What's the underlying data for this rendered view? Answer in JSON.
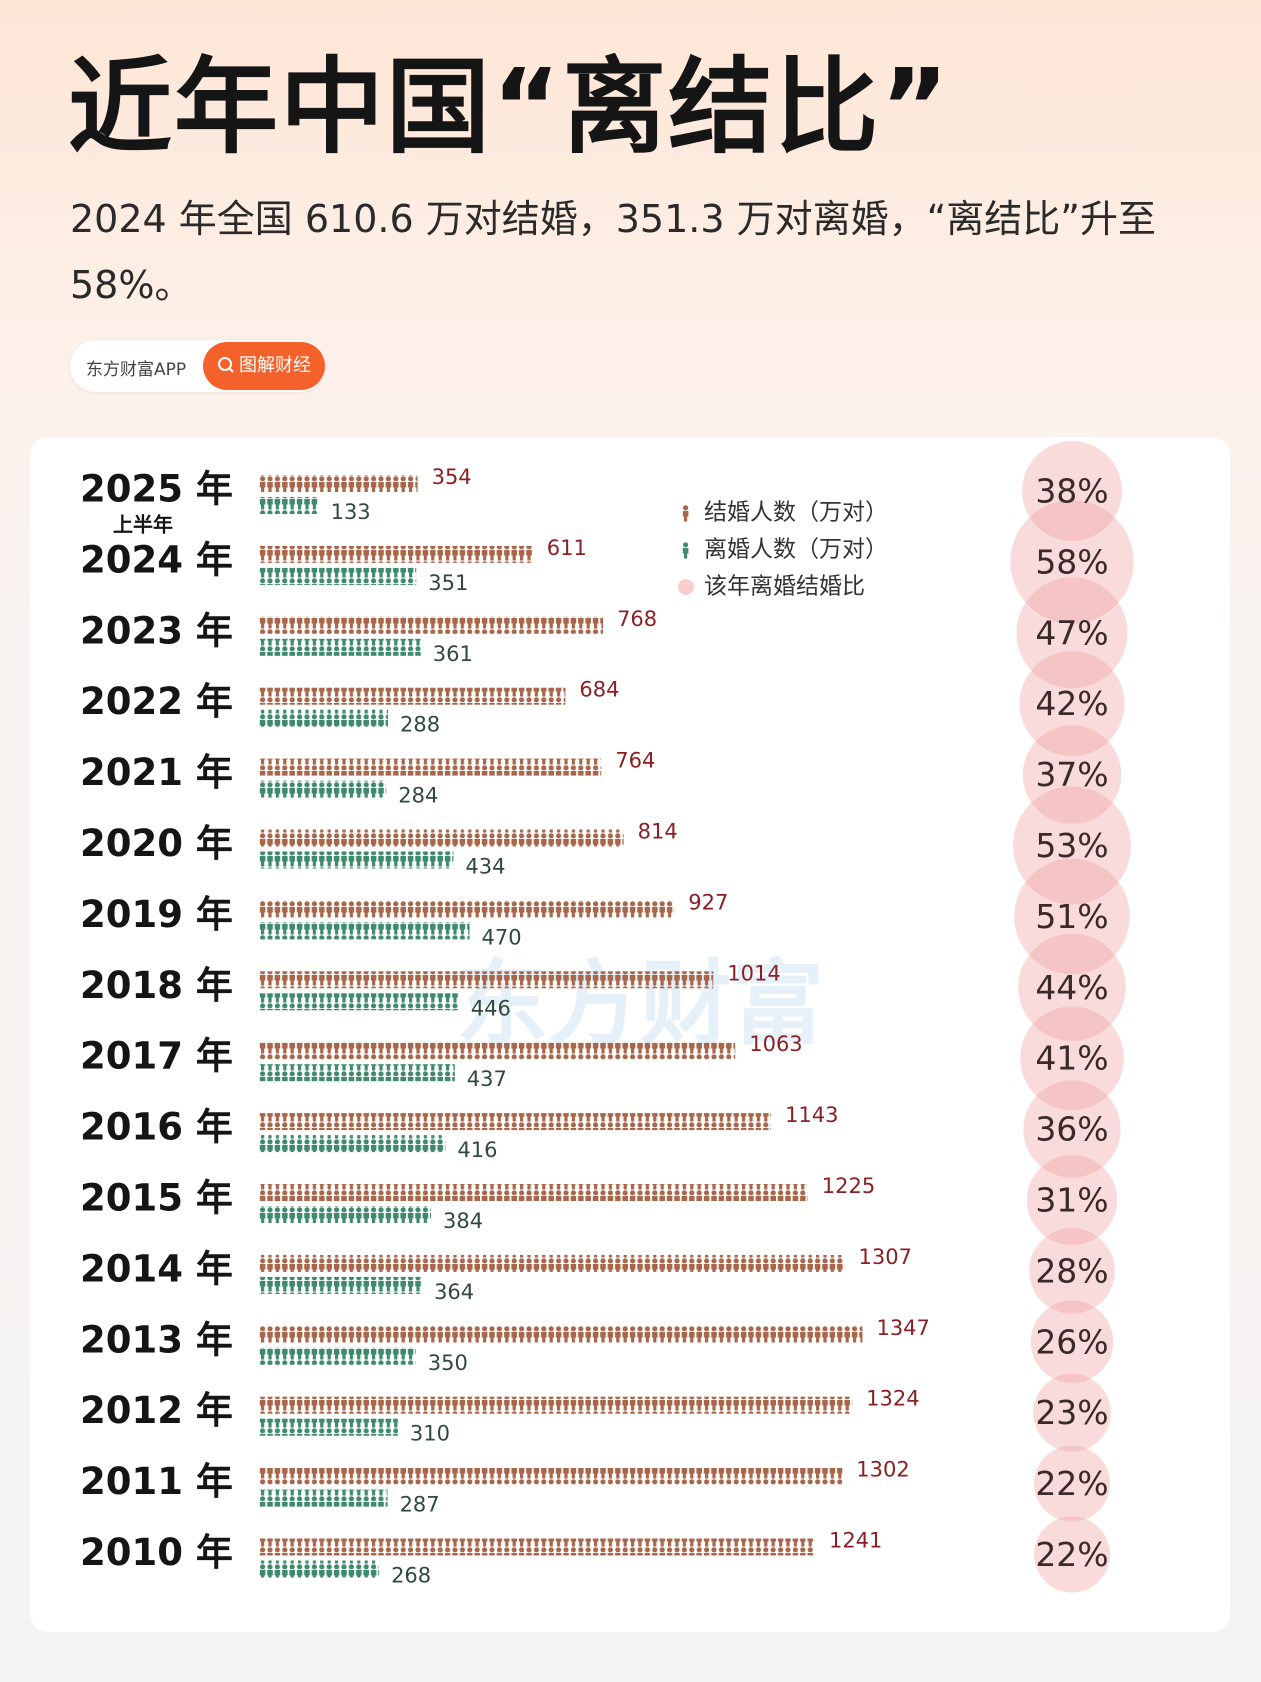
{
  "header": {
    "title": "近年中国“离结比”",
    "subtitle": "2024 年全国 610.6 万对结婚，351.3 万对离婚，“离结比”升至 58%。",
    "brand": "东方财富APP",
    "tag": "图解财经"
  },
  "chart_data": {
    "type": "pictogram",
    "watermark": "东方财富",
    "categories": [
      "2025 年",
      "2024 年",
      "2023 年",
      "2022 年",
      "2021 年",
      "2020 年",
      "2019 年",
      "2018 年",
      "2017 年",
      "2016 年",
      "2015 年",
      "2014 年",
      "2013 年",
      "2012 年",
      "2011 年",
      "2010 年"
    ],
    "first_category_note": "上半年",
    "series": [
      {
        "name": "结婚人数（万对）",
        "color": "#a8664a",
        "label_color": "#8a1f24",
        "values": [
          354,
          611,
          768,
          684,
          764,
          814,
          927,
          1014,
          1063,
          1143,
          1225,
          1307,
          1347,
          1324,
          1302,
          1241
        ]
      },
      {
        "name": "离婚人数（万对）",
        "color": "#3f8a6c",
        "label_color": "#2f4a3c",
        "values": [
          133,
          351,
          361,
          288,
          284,
          434,
          470,
          446,
          437,
          416,
          384,
          364,
          350,
          310,
          287,
          268
        ]
      },
      {
        "name": "该年离婚结婚比",
        "color": "#f0a0a0",
        "values": [
          38,
          58,
          47,
          42,
          37,
          53,
          51,
          44,
          41,
          36,
          31,
          28,
          26,
          23,
          22,
          22
        ],
        "value_labels": [
          "38%",
          "58%",
          "47%",
          "42%",
          "37%",
          "53%",
          "51%",
          "44%",
          "41%",
          "36%",
          "31%",
          "28%",
          "26%",
          "23%",
          "22%",
          "22%"
        ]
      }
    ]
  }
}
